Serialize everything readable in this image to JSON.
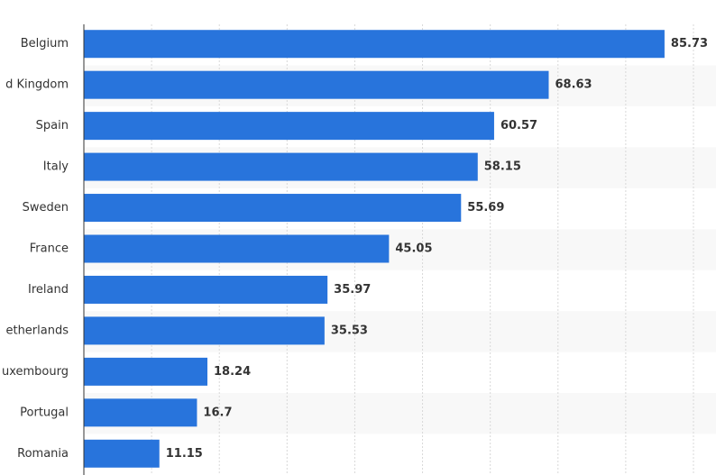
{
  "chart_data": {
    "type": "bar",
    "orientation": "horizontal",
    "categories": [
      "Belgium",
      "d Kingdom",
      "Spain",
      "Italy",
      "Sweden",
      "France",
      "Ireland",
      "etherlands",
      "uxembourg",
      "Portugal",
      "Romania"
    ],
    "values": [
      85.73,
      68.63,
      60.57,
      58.15,
      55.69,
      45.05,
      35.97,
      35.53,
      18.24,
      16.7,
      11.15
    ],
    "color": "#2874dc",
    "xlim": [
      0,
      90
    ],
    "xticks": [
      10,
      20,
      30,
      40,
      50,
      60,
      70,
      80,
      90
    ],
    "grid": true
  }
}
